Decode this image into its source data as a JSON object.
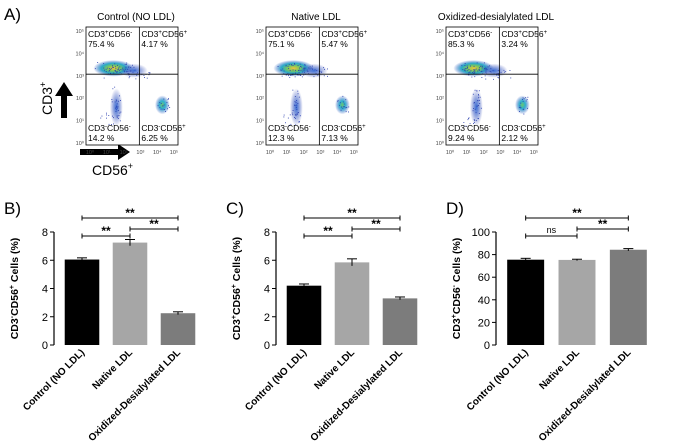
{
  "panel_labels": {
    "a": "A)",
    "b": "B)",
    "c": "C)",
    "d": "D)"
  },
  "flow": {
    "axis_y_label": "CD3",
    "axis_y_sup": "+",
    "axis_x_label": "CD56",
    "axis_x_sup": "+",
    "tick_labels": [
      "10⁰",
      "10¹",
      "10²",
      "10³",
      "10⁴",
      "10⁵"
    ],
    "quadrant_names": {
      "ul": {
        "base": "CD3",
        "s1": "+",
        "mid": "CD56",
        "s2": "-"
      },
      "ur": {
        "base": "CD3",
        "s1": "+",
        "mid": "CD56",
        "s2": "+"
      },
      "ll": {
        "base": "CD3",
        "s1": "-",
        "mid": "CD56",
        "s2": "-"
      },
      "lr": {
        "base": "CD3",
        "s1": "-",
        "mid": "CD56",
        "s2": "+"
      }
    },
    "panels": [
      {
        "title": "Control (NO LDL)",
        "ul": "75.4 %",
        "ur": "4.17 %",
        "ll": "14.2 %",
        "lr": "6.25 %"
      },
      {
        "title": "Native LDL",
        "ul": "75.1 %",
        "ur": "5.47 %",
        "ll": "12.3 %",
        "lr": "7.13 %"
      },
      {
        "title": "Oxidized-desialylated LDL",
        "ul": "85.3 %",
        "ur": "3.24 %",
        "ll": "9.24 %",
        "lr": "2.12 %"
      }
    ]
  },
  "chart_data": [
    {
      "type": "bar",
      "panel": "B)",
      "categories": [
        "Control (NO LDL)",
        "Native LDL",
        "Oxidized-Desialylated LDL"
      ],
      "values": [
        6.05,
        7.25,
        2.25
      ],
      "errors": [
        0.12,
        0.22,
        0.1
      ],
      "ylabel": {
        "a": "CD3",
        "sa": "-",
        "b": "CD56",
        "sb": "+",
        "c": " Cells (%)"
      },
      "ylim": [
        0,
        8
      ],
      "yticks": [
        "0",
        "2",
        "4",
        "6",
        "8"
      ],
      "ytick_values": [
        0,
        2,
        4,
        6,
        8
      ],
      "colors": [
        "#000000",
        "#a6a6a6",
        "#7c7c7c"
      ],
      "significance": [
        {
          "from": 0,
          "to": 2,
          "label": "**"
        },
        {
          "from": 0,
          "to": 1,
          "label": "**"
        },
        {
          "from": 1,
          "to": 2,
          "label": "**"
        }
      ]
    },
    {
      "type": "bar",
      "panel": "C)",
      "categories": [
        "Control (NO LDL)",
        "Native LDL",
        "Oxidized-Desialylated LDL"
      ],
      "values": [
        4.2,
        5.85,
        3.3
      ],
      "errors": [
        0.12,
        0.25,
        0.1
      ],
      "ylabel": {
        "a": "CD3",
        "sa": "+",
        "b": "CD56",
        "sb": "+",
        "c": " Cells (%)"
      },
      "ylim": [
        0,
        8
      ],
      "yticks": [
        "0",
        "2",
        "4",
        "6",
        "8"
      ],
      "ytick_values": [
        0,
        2,
        4,
        6,
        8
      ],
      "colors": [
        "#000000",
        "#a6a6a6",
        "#7c7c7c"
      ],
      "significance": [
        {
          "from": 0,
          "to": 2,
          "label": "**"
        },
        {
          "from": 0,
          "to": 1,
          "label": "**"
        },
        {
          "from": 1,
          "to": 2,
          "label": "**"
        }
      ]
    },
    {
      "type": "bar",
      "panel": "D)",
      "categories": [
        "Control (NO LDL)",
        "Native LDL",
        "Oxidized-Desialylated LDL"
      ],
      "values": [
        75.5,
        75.3,
        84.3
      ],
      "errors": [
        1.2,
        0.6,
        1.0
      ],
      "ylabel": {
        "a": "CD3",
        "sa": "+",
        "b": "CD56",
        "sb": "-",
        "c": " Cells (%)"
      },
      "ylim": [
        0,
        100
      ],
      "yticks": [
        "0",
        "20",
        "40",
        "60",
        "80",
        "100"
      ],
      "ytick_values": [
        0,
        20,
        40,
        60,
        80,
        100
      ],
      "colors": [
        "#000000",
        "#a6a6a6",
        "#7c7c7c"
      ],
      "significance": [
        {
          "from": 0,
          "to": 2,
          "label": "**"
        },
        {
          "from": 0,
          "to": 1,
          "label": "ns"
        },
        {
          "from": 1,
          "to": 2,
          "label": "**"
        }
      ]
    }
  ]
}
